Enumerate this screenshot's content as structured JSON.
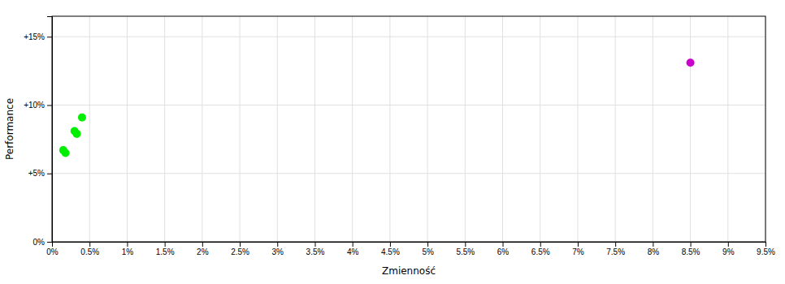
{
  "chart_data": {
    "type": "scatter",
    "xlabel": "Zmienność",
    "ylabel": "Performance",
    "xlim": [
      0,
      0.095
    ],
    "ylim": [
      0,
      0.165
    ],
    "xticks": [
      {
        "value": 0,
        "label": "0%"
      },
      {
        "value": 0.005,
        "label": "0.5%"
      },
      {
        "value": 0.01,
        "label": "1%"
      },
      {
        "value": 0.015,
        "label": "1.5%"
      },
      {
        "value": 0.02,
        "label": "2%"
      },
      {
        "value": 0.025,
        "label": "2.5%"
      },
      {
        "value": 0.03,
        "label": "3%"
      },
      {
        "value": 0.035,
        "label": "3.5%"
      },
      {
        "value": 0.04,
        "label": "4%"
      },
      {
        "value": 0.045,
        "label": "4.5%"
      },
      {
        "value": 0.05,
        "label": "5%"
      },
      {
        "value": 0.055,
        "label": "5.5%"
      },
      {
        "value": 0.06,
        "label": "6%"
      },
      {
        "value": 0.065,
        "label": "6.5%"
      },
      {
        "value": 0.07,
        "label": "7%"
      },
      {
        "value": 0.075,
        "label": "7.5%"
      },
      {
        "value": 0.08,
        "label": "8%"
      },
      {
        "value": 0.085,
        "label": "8.5%"
      },
      {
        "value": 0.09,
        "label": "9%"
      },
      {
        "value": 0.095,
        "label": "9.5%"
      }
    ],
    "yticks": [
      {
        "value": 0,
        "label": "0%"
      },
      {
        "value": 0.05,
        "label": "+5%"
      },
      {
        "value": 0.1,
        "label": "+10%"
      },
      {
        "value": 0.15,
        "label": "+15%"
      }
    ],
    "grid": true,
    "series": [
      {
        "color": "#00ee00",
        "x": [
          0.004,
          0.003,
          0.0033,
          0.0015,
          0.0018
        ],
        "values": [
          0.091,
          0.081,
          0.079,
          0.067,
          0.065
        ]
      },
      {
        "color": "#cc00cc",
        "x": [
          0.085
        ],
        "values": [
          0.131
        ]
      }
    ]
  }
}
